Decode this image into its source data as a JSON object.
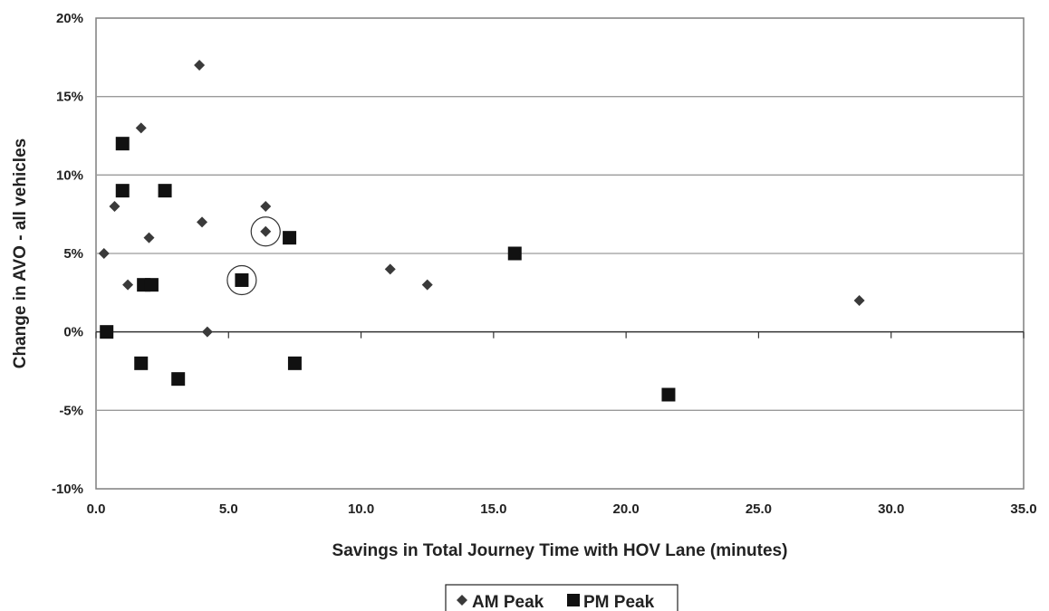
{
  "chart_data": {
    "type": "scatter",
    "title": "",
    "xlabel": "Savings in Total Journey Time with HOV Lane (minutes)",
    "ylabel": "Change in AVO - all vehicles",
    "xlim": [
      0,
      35
    ],
    "ylim": [
      -10,
      20
    ],
    "x_ticks": [
      0,
      5,
      10,
      15,
      20,
      25,
      30,
      35
    ],
    "x_tick_labels": [
      "0.0",
      "5.0",
      "10.0",
      "15.0",
      "20.0",
      "25.0",
      "30.0",
      "35.0"
    ],
    "y_ticks": [
      -10,
      -5,
      0,
      5,
      10,
      15,
      20
    ],
    "y_tick_labels": [
      "-10%",
      "-5%",
      "0%",
      "5%",
      "10%",
      "15%",
      "20%"
    ],
    "grid": "horizontal",
    "legend_position": "bottom",
    "series": [
      {
        "name": "AM Peak",
        "marker": "diamond",
        "color": "#3a3a3a",
        "points": [
          {
            "x": 0.3,
            "y": 5
          },
          {
            "x": 0.7,
            "y": 8
          },
          {
            "x": 1.2,
            "y": 3
          },
          {
            "x": 1.7,
            "y": 13
          },
          {
            "x": 2.0,
            "y": 6
          },
          {
            "x": 3.9,
            "y": 17
          },
          {
            "x": 4.0,
            "y": 7
          },
          {
            "x": 4.2,
            "y": 0
          },
          {
            "x": 6.4,
            "y": 8
          },
          {
            "x": 6.4,
            "y": 6.4,
            "circled": true
          },
          {
            "x": 11.1,
            "y": 4
          },
          {
            "x": 12.5,
            "y": 3
          },
          {
            "x": 28.8,
            "y": 2
          }
        ]
      },
      {
        "name": "PM Peak",
        "marker": "square",
        "color": "#111111",
        "points": [
          {
            "x": 0.4,
            "y": 0
          },
          {
            "x": 1.0,
            "y": 12
          },
          {
            "x": 1.0,
            "y": 9
          },
          {
            "x": 1.7,
            "y": -2
          },
          {
            "x": 1.8,
            "y": 3
          },
          {
            "x": 2.1,
            "y": 3
          },
          {
            "x": 2.6,
            "y": 9
          },
          {
            "x": 3.1,
            "y": -3
          },
          {
            "x": 5.5,
            "y": 3.3,
            "circled": true
          },
          {
            "x": 7.3,
            "y": 6
          },
          {
            "x": 7.5,
            "y": -2
          },
          {
            "x": 15.8,
            "y": 5
          },
          {
            "x": 21.6,
            "y": -4
          }
        ]
      }
    ]
  }
}
